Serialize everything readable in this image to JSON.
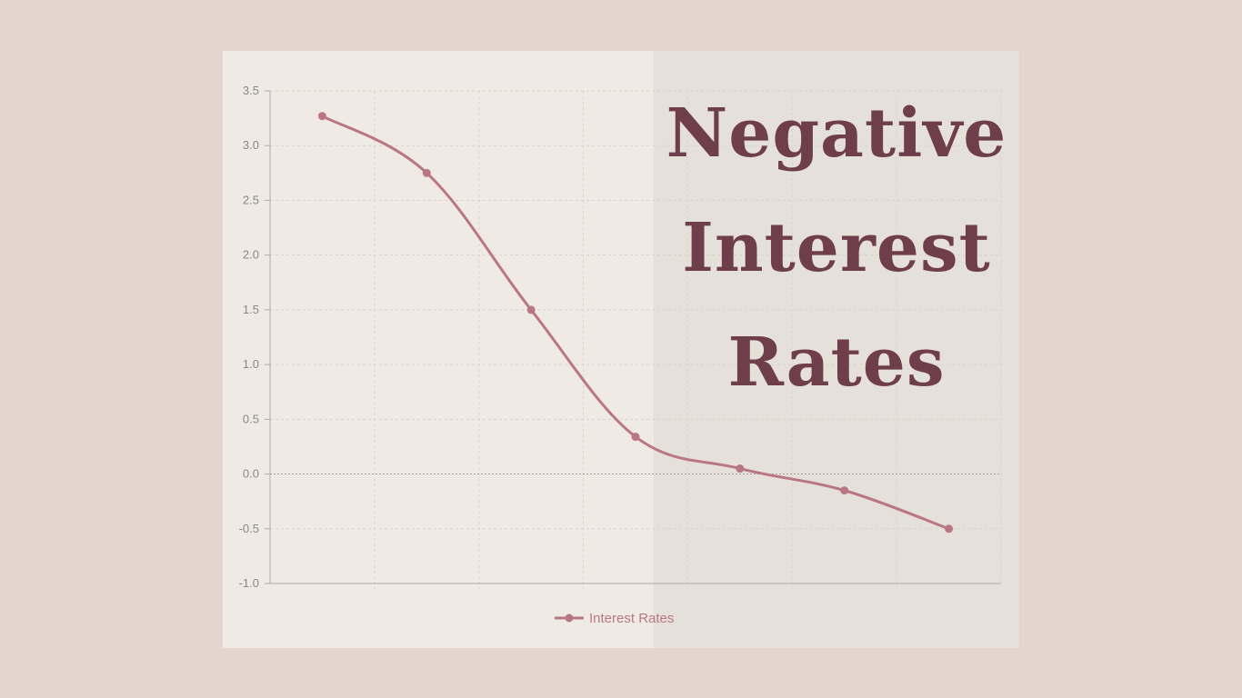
{
  "title_lines": [
    "Negative",
    "Interest",
    "Rates"
  ],
  "colors": {
    "background": "#e4d5ce",
    "line": "#b97782",
    "title": "#6e3f4a",
    "tick": "#888888"
  },
  "chart_data": {
    "type": "line",
    "title": "Negative Interest Rates",
    "x": [
      1,
      2,
      3,
      4,
      5,
      6,
      7
    ],
    "series": [
      {
        "name": "Interest Rates",
        "values": [
          3.27,
          2.75,
          1.5,
          0.34,
          0.05,
          -0.15,
          -0.5
        ]
      }
    ],
    "ylim": [
      -1.0,
      3.5
    ],
    "yticks": [
      "3.5",
      "3.0",
      "2.5",
      "2.0",
      "1.5",
      "1.0",
      "0.5",
      "0.0",
      "-0.5",
      "-1.0"
    ],
    "xticks": [],
    "grid": true,
    "legend": "bottom-center"
  }
}
